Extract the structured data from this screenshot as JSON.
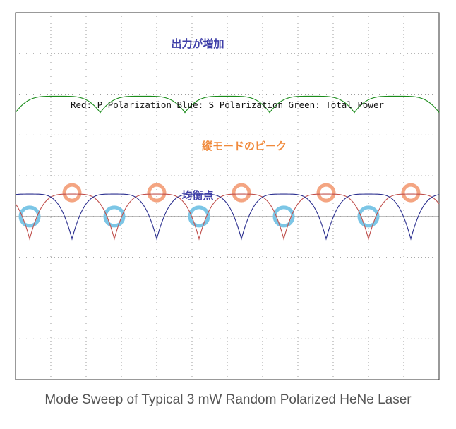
{
  "chart_data": {
    "type": "line",
    "title": "",
    "caption": "Mode Sweep of Typical 3 mW Random Polarized HeNe Laser",
    "legend_text": "Red: P Polarization  Blue: S Polarization  Green: Total Power",
    "grid": true,
    "annotations": {
      "output_increase": "出力が増加",
      "mode_peaks": "縦モードのピーク",
      "balance_points": "均衡点"
    },
    "series": [
      {
        "name": "P Polarization",
        "color": "#c0504d",
        "period": 2.4,
        "phase": 0.4,
        "trough": -0.55,
        "peak": 0.55
      },
      {
        "name": "S Polarization",
        "color": "#2b2f8f",
        "period": 2.4,
        "phase": 1.6,
        "trough": -0.55,
        "peak": 0.55
      },
      {
        "name": "Total Power",
        "color": "#1a8c1a",
        "period": 2.4,
        "phase": 0.0,
        "trough": 2.55,
        "peak": 2.95
      }
    ],
    "mode_peak_markers_x": [
      1.6,
      4.0,
      6.4,
      8.8,
      11.2
    ],
    "balance_point_markers_x": [
      0.4,
      2.8,
      5.2,
      7.6,
      10.0
    ],
    "ylim": [
      -4,
      5
    ],
    "xlim": [
      0,
      12
    ]
  },
  "colors": {
    "background": "#ffffff",
    "frame": "#333333",
    "grid": "#9e9e9e",
    "axis_line": "#555555",
    "peak_marker": "#f4a582",
    "balance_marker": "#7cc6e6",
    "annotation_blue": "#3f3fa8",
    "annotation_orange": "#f08a3c"
  }
}
